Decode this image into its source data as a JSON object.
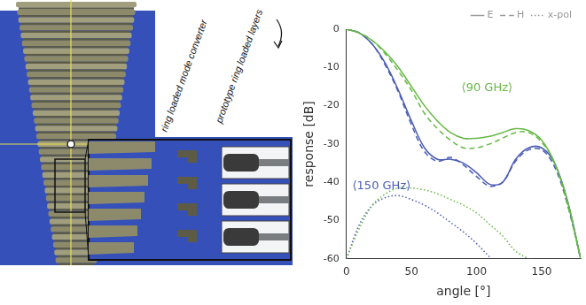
{
  "chart_data": {
    "type": "line",
    "x_label": "angle [°]",
    "y_label": "response [dB]",
    "x": [
      0,
      10,
      20,
      30,
      40,
      50,
      60,
      70,
      80,
      90,
      100,
      110,
      120,
      130,
      140,
      150,
      160,
      170,
      180
    ],
    "series": [
      {
        "name": "E",
        "color": "#66b844",
        "line_style": "solid",
        "values": [
          0,
          -1,
          -3,
          -6,
          -10,
          -15,
          -20,
          -24,
          -27,
          -28.5,
          -28.5,
          -28,
          -27,
          -26,
          -26.5,
          -29,
          -35,
          -45,
          -60
        ]
      },
      {
        "name": "H",
        "color": "#66b844",
        "line_style": "dashed",
        "values": [
          0,
          -1,
          -3,
          -6.5,
          -11,
          -16,
          -22,
          -26,
          -29,
          -31,
          -31,
          -30,
          -28.5,
          -27,
          -27,
          -29.5,
          -35,
          -46,
          -60
        ]
      },
      {
        "name": "x-pol",
        "color": "#66b844",
        "line_style": "dotted",
        "values": [
          -60,
          -52,
          -46,
          -43,
          -41.5,
          -41.5,
          -42,
          -43,
          -44.5,
          -46,
          -48,
          -51,
          -54,
          -58,
          -60,
          null,
          null,
          null,
          null
        ]
      },
      {
        "name": "E",
        "color": "#4a5cb4",
        "line_style": "solid",
        "values": [
          0,
          -1,
          -4,
          -9,
          -16,
          -24,
          -31,
          -34,
          -34,
          -35,
          -37.5,
          -40.5,
          -40,
          -34,
          -31,
          -31,
          -35,
          -45,
          -60
        ]
      },
      {
        "name": "H",
        "color": "#4a5cb4",
        "line_style": "dashed",
        "values": [
          0,
          -1,
          -4,
          -9.5,
          -16.5,
          -25,
          -32,
          -34.5,
          -33.5,
          -35.5,
          -38.5,
          -41,
          -40,
          -34.5,
          -31.5,
          -31.5,
          -36,
          -46,
          -60
        ]
      },
      {
        "name": "x-pol",
        "color": "#4a5cb4",
        "line_style": "dotted",
        "values": [
          -60,
          -51,
          -46,
          -44,
          -43.5,
          -44.5,
          -46,
          -48,
          -50.5,
          -53,
          -56,
          -59.5,
          null,
          null,
          null,
          null,
          null,
          null,
          null
        ]
      }
    ],
    "annotations": [
      {
        "text": "⟨90 GHz⟩",
        "x": 108,
        "y": -15.5,
        "color": "#66b844"
      },
      {
        "text": "⟨150 GHz⟩",
        "x": 27,
        "y": -41,
        "color": "#4a5cb4"
      }
    ],
    "xlim": [
      0,
      180
    ],
    "xticks": [
      0,
      50,
      100,
      150
    ],
    "ylim": [
      -60,
      0
    ],
    "yticks": [
      -60,
      -50,
      -40,
      -30,
      -20,
      -10,
      0
    ],
    "grid": false,
    "legend": "top right"
  },
  "figure_labels": [
    "ring loaded mode converter",
    "prototype ring loaded layers"
  ]
}
